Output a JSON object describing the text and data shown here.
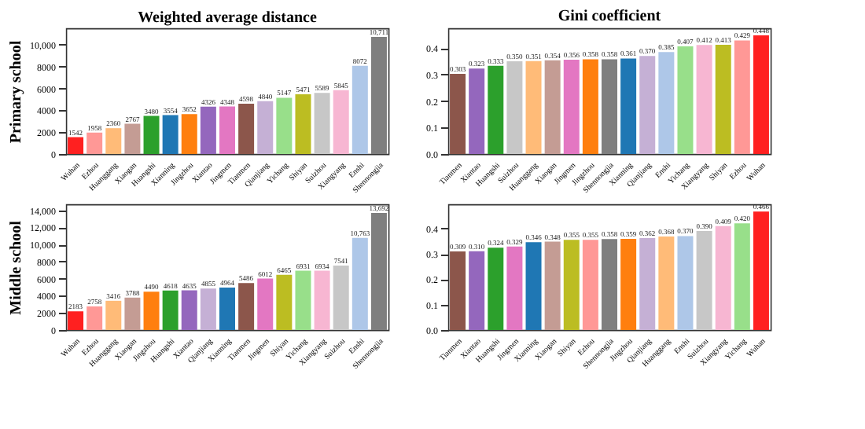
{
  "chart_data": [
    {
      "type": "bar",
      "title": "Weighted average distance",
      "ylabel": "Primary school",
      "categories": [
        "Wuhan",
        "Ezhou",
        "Huanggang",
        "Xiaogan",
        "Huangshi",
        "Xianning",
        "Jingzhou",
        "Xiantao",
        "Jingmen",
        "Tianmen",
        "Qianjiang",
        "Yichang",
        "Shiyan",
        "Suizhou",
        "Xiangyang",
        "Enshi",
        "Shennongjia"
      ],
      "values": [
        1542,
        1958,
        2360,
        2767,
        3480,
        3554,
        3652,
        4326,
        4348,
        4598,
        4840,
        5147,
        5471,
        5589,
        5845,
        8072,
        10711
      ],
      "value_labels": [
        "1542",
        "1958",
        "2360",
        "2767",
        "3480",
        "3554",
        "3652",
        "4326",
        "4348",
        "4598",
        "4840",
        "5147",
        "5471",
        "5589",
        "5845",
        "8072",
        "10,711"
      ],
      "colors": [
        "#ff2020",
        "#ff9896",
        "#ffbb78",
        "#c49c94",
        "#2ca02c",
        "#1f77b4",
        "#ff7f0e",
        "#9467bd",
        "#e377c2",
        "#8c564b",
        "#c5b0d5",
        "#98df8a",
        "#bcbd22",
        "#c7c7c7",
        "#f7b6d2",
        "#aec7e8",
        "#7f7f7f"
      ],
      "ylim": [
        0,
        11500
      ],
      "yticks": [
        0,
        2000,
        4000,
        6000,
        8000,
        {
          "value": 10000,
          "label": "10,000"
        }
      ],
      "grid": false
    },
    {
      "type": "bar",
      "title": "Gini coefficient",
      "categories": [
        "Tianmen",
        "Xiantao",
        "Huangshi",
        "Suizhou",
        "Huanggang",
        "Xiaogan",
        "Jingmen",
        "Jingzhou",
        "Shennongjia",
        "Xianning",
        "Qianjiang",
        "Enshi",
        "Yichang",
        "Xiangyang",
        "Shiyan",
        "Ezhou",
        "Wuhan"
      ],
      "values": [
        0.303,
        0.323,
        0.333,
        0.35,
        0.351,
        0.354,
        0.356,
        0.358,
        0.358,
        0.361,
        0.37,
        0.385,
        0.407,
        0.412,
        0.413,
        0.429,
        0.448
      ],
      "value_labels": [
        "0.303",
        "0.323",
        "0.333",
        "0.350",
        "0.351",
        "0.354",
        "0.356",
        "0.358",
        "0.358",
        "0.361",
        "0.370",
        "0.385",
        "0.407",
        "0.412",
        "0.413",
        "0.429",
        "0.448"
      ],
      "colors": [
        "#8c564b",
        "#9467bd",
        "#2ca02c",
        "#c7c7c7",
        "#ffbb78",
        "#c49c94",
        "#e377c2",
        "#ff7f0e",
        "#7f7f7f",
        "#1f77b4",
        "#c5b0d5",
        "#aec7e8",
        "#98df8a",
        "#f7b6d2",
        "#bcbd22",
        "#ff9896",
        "#ff2020"
      ],
      "ylim": [
        0,
        0.475
      ],
      "yticks": [
        {
          "value": 0,
          "label": "0.0"
        },
        0.1,
        0.2,
        0.3,
        0.4
      ],
      "grid": false
    },
    {
      "type": "bar",
      "ylabel": "Middle school",
      "categories": [
        "Wuhan",
        "Ezhou",
        "Huanggang",
        "Xiaogan",
        "Jingzhou",
        "Huangshi",
        "Xiantao",
        "Qianjiang",
        "Xianning",
        "Tianmen",
        "Jingmen",
        "Shiyan",
        "Yichang",
        "Xiangyang",
        "Suizhou",
        "Enshi",
        "Shennongjia"
      ],
      "values": [
        2183,
        2758,
        3416,
        3788,
        4490,
        4618,
        4635,
        4855,
        4964,
        5486,
        6012,
        6465,
        6931,
        6934,
        7541,
        10763,
        13692
      ],
      "value_labels": [
        "2183",
        "2758",
        "3416",
        "3788",
        "4490",
        "4618",
        "4635",
        "4855",
        "4964",
        "5486",
        "6012",
        "6465",
        "6931",
        "6934",
        "7541",
        "10,763",
        "13,692"
      ],
      "colors": [
        "#ff2020",
        "#ff9896",
        "#ffbb78",
        "#c49c94",
        "#ff7f0e",
        "#2ca02c",
        "#9467bd",
        "#c5b0d5",
        "#1f77b4",
        "#8c564b",
        "#e377c2",
        "#bcbd22",
        "#98df8a",
        "#f7b6d2",
        "#c7c7c7",
        "#aec7e8",
        "#7f7f7f"
      ],
      "ylim": [
        0,
        14700
      ],
      "yticks": [
        0,
        2000,
        4000,
        6000,
        8000,
        {
          "value": 10000,
          "label": "10,000"
        },
        {
          "value": 12000,
          "label": "12,000"
        },
        {
          "value": 14000,
          "label": "14,000"
        }
      ],
      "grid": false
    },
    {
      "type": "bar",
      "categories": [
        "Tianmen",
        "Xiantao",
        "Huangshi",
        "Jingmen",
        "Xianning",
        "Xiaogan",
        "Shiyan",
        "Ezhou",
        "Shennongjia",
        "Jingzhou",
        "Qianjiang",
        "Huanggang",
        "Enshi",
        "Suizhou",
        "Xiangyang",
        "Yichang",
        "Wuhan"
      ],
      "values": [
        0.309,
        0.31,
        0.324,
        0.329,
        0.346,
        0.348,
        0.355,
        0.355,
        0.358,
        0.359,
        0.362,
        0.368,
        0.37,
        0.39,
        0.409,
        0.42,
        0.466
      ],
      "value_labels": [
        "0.309",
        "0.310",
        "0.324",
        "0.329",
        "0.346",
        "0.348",
        "0.355",
        "0.355",
        "0.358",
        "0.359",
        "0.362",
        "0.368",
        "0.370",
        "0.390",
        "0.409",
        "0.420",
        "0.466"
      ],
      "colors": [
        "#8c564b",
        "#9467bd",
        "#2ca02c",
        "#e377c2",
        "#1f77b4",
        "#c49c94",
        "#bcbd22",
        "#ff9896",
        "#7f7f7f",
        "#ff7f0e",
        "#c5b0d5",
        "#ffbb78",
        "#aec7e8",
        "#c7c7c7",
        "#f7b6d2",
        "#98df8a",
        "#ff2020"
      ],
      "ylim": [
        0,
        0.495
      ],
      "yticks": [
        {
          "value": 0,
          "label": "0.0"
        },
        0.1,
        0.2,
        0.3,
        0.4
      ],
      "grid": false
    }
  ]
}
